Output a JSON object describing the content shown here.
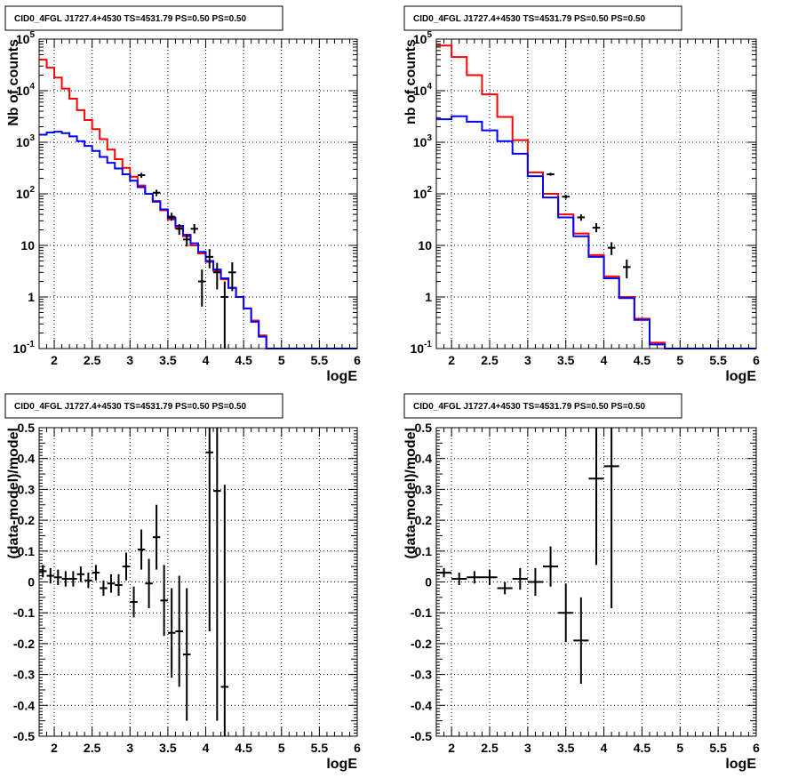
{
  "chart_data": [
    {
      "type": "line",
      "title": "CID0_4FGL J1727.4+4530 TS=4531.79 PS=0.50 PS=0.50",
      "xlabel": "logE",
      "ylabel": "Nb of counts",
      "xlim": [
        1.8,
        6.0
      ],
      "ylim": [
        0.1,
        100000
      ],
      "yscale": "log",
      "grid": true,
      "x_ticks": [
        "2",
        "2.5",
        "3",
        "3.5",
        "4",
        "4.5",
        "5",
        "5.5",
        "6"
      ],
      "y_ticks": [
        "10^-1",
        "1",
        "10",
        "10^2",
        "10^3",
        "10^4",
        "10^5"
      ],
      "bin_edges": [
        1.8,
        1.9,
        2.0,
        2.1,
        2.2,
        2.3,
        2.4,
        2.5,
        2.6,
        2.7,
        2.8,
        2.9,
        3.0,
        3.1,
        3.2,
        3.3,
        3.4,
        3.5,
        3.6,
        3.7,
        3.8,
        3.9,
        4.0,
        4.1,
        4.2,
        4.3,
        4.4,
        4.5,
        4.6,
        4.7,
        4.8,
        4.9,
        5.0,
        5.1,
        5.2,
        5.3,
        5.4,
        5.5,
        5.6,
        5.7,
        5.8,
        5.9,
        6.0
      ],
      "series": [
        {
          "color": "#ff0000",
          "style": "step",
          "values": [
            40000,
            28000,
            18000,
            11000,
            7000,
            4200,
            2700,
            1800,
            1150,
            720,
            470,
            320,
            215,
            145,
            100,
            70,
            48,
            32,
            22,
            15,
            10,
            7,
            4.8,
            3.2,
            2.2,
            1.5,
            1.0,
            0.6,
            0.35,
            0.18,
            0.1,
            0.1,
            0.1,
            0.1,
            0.1,
            0.1,
            0.1,
            0.1,
            0.1,
            0.1,
            0.1,
            0.1
          ]
        },
        {
          "color": "#0000ff",
          "style": "step",
          "values": [
            1400,
            1550,
            1600,
            1500,
            1300,
            1050,
            850,
            680,
            520,
            400,
            310,
            240,
            180,
            135,
            100,
            72,
            50,
            34,
            24,
            16,
            11,
            7.5,
            5.0,
            3.4,
            2.3,
            1.5,
            1.0,
            0.6,
            0.33,
            0.17,
            0.1,
            0.1,
            0.1,
            0.1,
            0.1,
            0.1,
            0.1,
            0.1,
            0.1,
            0.1,
            0.1,
            0.1
          ]
        }
      ],
      "points": [
        {
          "x": 3.15,
          "y": 230,
          "ylo": 205,
          "yhi": 255
        },
        {
          "x": 3.35,
          "y": 105,
          "ylo": 90,
          "yhi": 120
        },
        {
          "x": 3.55,
          "y": 36,
          "ylo": 30,
          "yhi": 43
        },
        {
          "x": 3.65,
          "y": 21,
          "ylo": 16,
          "yhi": 26
        },
        {
          "x": 3.75,
          "y": 13,
          "ylo": 9.5,
          "yhi": 16.5
        },
        {
          "x": 3.85,
          "y": 21,
          "ylo": 17,
          "yhi": 26
        },
        {
          "x": 3.95,
          "y": 2.0,
          "ylo": 0.65,
          "yhi": 3.4
        },
        {
          "x": 4.05,
          "y": 6.0,
          "ylo": 3.6,
          "yhi": 8.5
        },
        {
          "x": 4.15,
          "y": 3.0,
          "ylo": 1.4,
          "yhi": 4.6
        },
        {
          "x": 4.25,
          "y": 1.0,
          "ylo": 0.1,
          "yhi": 2.0
        },
        {
          "x": 4.35,
          "y": 3.0,
          "ylo": 1.3,
          "yhi": 4.7
        }
      ]
    },
    {
      "type": "line",
      "title": "CID0_4FGL J1727.4+4530 TS=4531.79 PS=0.50 PS=0.50",
      "xlabel": "logE",
      "ylabel": "nb of counts",
      "xlim": [
        1.8,
        6.0
      ],
      "ylim": [
        0.1,
        100000
      ],
      "yscale": "log",
      "grid": true,
      "x_ticks": [
        "2",
        "2.5",
        "3",
        "3.5",
        "4",
        "4.5",
        "5",
        "5.5",
        "6"
      ],
      "y_ticks": [
        "10^-1",
        "1",
        "10",
        "10^2",
        "10^3",
        "10^4",
        "10^5"
      ],
      "bin_edges": [
        1.8,
        2.0,
        2.2,
        2.4,
        2.6,
        2.8,
        3.0,
        3.2,
        3.4,
        3.6,
        3.8,
        4.0,
        4.2,
        4.4,
        4.6,
        4.8,
        5.0,
        5.2,
        5.4,
        5.6,
        5.8,
        6.0
      ],
      "series": [
        {
          "color": "#ff0000",
          "style": "step",
          "values": [
            75000,
            45000,
            20000,
            8500,
            3100,
            1100,
            260,
            100,
            40,
            17,
            6.5,
            2.5,
            1.0,
            0.38,
            0.13,
            0.1,
            0.1,
            0.1,
            0.1,
            0.1,
            0.1
          ]
        },
        {
          "color": "#0000ff",
          "style": "step",
          "values": [
            2800,
            3200,
            2500,
            1700,
            1050,
            600,
            220,
            85,
            35,
            15,
            6,
            2.3,
            0.95,
            0.36,
            0.12,
            0.1,
            0.1,
            0.1,
            0.1,
            0.1,
            0.1
          ]
        }
      ],
      "points": [
        {
          "x": 3.3,
          "y": 240,
          "ylo": 225,
          "yhi": 255
        },
        {
          "x": 3.5,
          "y": 88,
          "ylo": 80,
          "yhi": 96
        },
        {
          "x": 3.7,
          "y": 35,
          "ylo": 30,
          "yhi": 40
        },
        {
          "x": 3.9,
          "y": 22,
          "ylo": 18,
          "yhi": 27
        },
        {
          "x": 4.1,
          "y": 9.0,
          "ylo": 6.5,
          "yhi": 11.5
        },
        {
          "x": 4.3,
          "y": 3.8,
          "ylo": 2.3,
          "yhi": 5.3
        }
      ]
    },
    {
      "type": "scatter",
      "title": "CID0_4FGL J1727.4+4530 TS=4531.79 PS=0.50 PS=0.50",
      "xlabel": "logE",
      "ylabel": "(data-model)/model",
      "xlim": [
        1.8,
        6.0
      ],
      "ylim": [
        -0.5,
        0.5
      ],
      "grid": true,
      "x_ticks": [
        "2",
        "2.5",
        "3",
        "3.5",
        "4",
        "4.5",
        "5",
        "5.5",
        "6"
      ],
      "y_ticks": [
        "-0.5",
        "-0.4",
        "-0.3",
        "-0.2",
        "-0.1",
        "0",
        "0.1",
        "0.2",
        "0.3",
        "0.4",
        "0.5"
      ],
      "xerr": 0.05,
      "points": [
        {
          "x": 1.85,
          "y": 0.035,
          "err": 0.02
        },
        {
          "x": 1.95,
          "y": 0.02,
          "err": 0.025
        },
        {
          "x": 2.05,
          "y": 0.015,
          "err": 0.025
        },
        {
          "x": 2.15,
          "y": 0.01,
          "err": 0.025
        },
        {
          "x": 2.25,
          "y": 0.01,
          "err": 0.025
        },
        {
          "x": 2.35,
          "y": 0.025,
          "err": 0.025
        },
        {
          "x": 2.45,
          "y": 0.005,
          "err": 0.025
        },
        {
          "x": 2.55,
          "y": 0.03,
          "err": 0.025
        },
        {
          "x": 2.65,
          "y": -0.02,
          "err": 0.025
        },
        {
          "x": 2.75,
          "y": -0.005,
          "err": 0.03
        },
        {
          "x": 2.85,
          "y": -0.01,
          "err": 0.035
        },
        {
          "x": 2.95,
          "y": 0.05,
          "err": 0.045
        },
        {
          "x": 3.05,
          "y": -0.065,
          "err": 0.05
        },
        {
          "x": 3.15,
          "y": 0.105,
          "err": 0.065
        },
        {
          "x": 3.25,
          "y": -0.005,
          "err": 0.08
        },
        {
          "x": 3.35,
          "y": 0.145,
          "err": 0.105
        },
        {
          "x": 3.45,
          "y": -0.06,
          "err": 0.115
        },
        {
          "x": 3.55,
          "y": -0.165,
          "err": 0.145
        },
        {
          "x": 3.65,
          "y": -0.16,
          "err": 0.18
        },
        {
          "x": 3.75,
          "y": -0.235,
          "err": 0.215
        },
        {
          "x": 4.05,
          "y": 0.42,
          "err": 0.58
        },
        {
          "x": 4.15,
          "y": 0.295,
          "err": 0.745
        },
        {
          "x": 4.25,
          "y": -0.34,
          "err": 0.655
        }
      ]
    },
    {
      "type": "scatter",
      "title": "CID0_4FGL J1727.4+4530 TS=4531.79 PS=0.50 PS=0.50",
      "xlabel": "logE",
      "ylabel": "(data-model)/model",
      "xlim": [
        1.8,
        6.0
      ],
      "ylim": [
        -0.5,
        0.5
      ],
      "grid": true,
      "x_ticks": [
        "2",
        "2.5",
        "3",
        "3.5",
        "4",
        "4.5",
        "5",
        "5.5",
        "6"
      ],
      "y_ticks": [
        "-0.5",
        "-0.4",
        "-0.3",
        "-0.2",
        "-0.1",
        "0",
        "0.1",
        "0.2",
        "0.3",
        "0.4",
        "0.5"
      ],
      "xerr": 0.1,
      "points": [
        {
          "x": 1.9,
          "y": 0.03,
          "err": 0.015
        },
        {
          "x": 2.1,
          "y": 0.01,
          "err": 0.02
        },
        {
          "x": 2.3,
          "y": 0.015,
          "err": 0.02
        },
        {
          "x": 2.5,
          "y": 0.015,
          "err": 0.025
        },
        {
          "x": 2.7,
          "y": -0.02,
          "err": 0.02
        },
        {
          "x": 2.9,
          "y": 0.01,
          "err": 0.035
        },
        {
          "x": 3.1,
          "y": 0.0,
          "err": 0.045
        },
        {
          "x": 3.3,
          "y": 0.05,
          "err": 0.065
        },
        {
          "x": 3.5,
          "y": -0.1,
          "err": 0.095
        },
        {
          "x": 3.7,
          "y": -0.19,
          "err": 0.14
        },
        {
          "x": 3.9,
          "y": 0.335,
          "err": 0.28
        },
        {
          "x": 4.1,
          "y": 0.375,
          "err": 0.46
        }
      ]
    }
  ]
}
